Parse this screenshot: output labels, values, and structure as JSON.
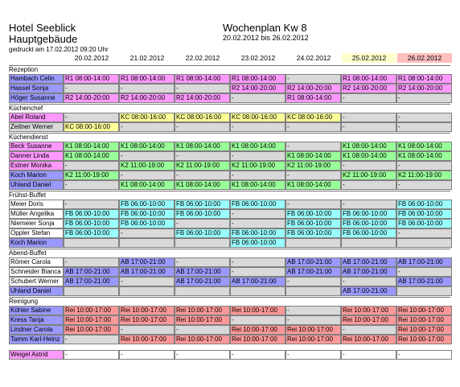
{
  "header": {
    "hotel": "Hotel Seeblick",
    "building": "Hauptgebäude",
    "printed": "gedruckt am 17.02.2012  09:20 Uhr",
    "title": "Wochenplan Kw 8",
    "range": "20.02.2012 bis 26.02.2012"
  },
  "dates": [
    {
      "label": "20.02.2012",
      "bg": "#ffffff"
    },
    {
      "label": "21.02.2012",
      "bg": "#ffffff"
    },
    {
      "label": "22.02.2012",
      "bg": "#ffffff"
    },
    {
      "label": "23.02.2012",
      "bg": "#ffffff"
    },
    {
      "label": "24.02.2012",
      "bg": "#ffffff"
    },
    {
      "label": "25.02.2012",
      "bg": "#ffffcc"
    },
    {
      "label": "26.02.2012",
      "bg": "#ffc0c0"
    }
  ],
  "colors": {
    "pink": "#ff99ff",
    "gray": "#d9d9d9",
    "yellow": "#ffff99",
    "green": "#99ff99",
    "blue": "#9999ff",
    "cyan": "#99ffff",
    "rose": "#ff9999",
    "white": "#ffffff"
  },
  "sections": [
    {
      "title": "Rezeption",
      "rows": [
        {
          "name": "Hambach Celin",
          "nc": "blue",
          "cells": [
            [
              "R1 08:00-14:00",
              "pink"
            ],
            [
              "R1 08:00-14:00",
              "pink"
            ],
            [
              "R1 08:00-14:00",
              "pink"
            ],
            [
              "R1 08:00-14:00",
              "pink"
            ],
            [
              "-",
              "gray"
            ],
            [
              "R1 08:00-14:00",
              "pink"
            ],
            [
              "R1 08:00-14:00",
              "pink"
            ]
          ]
        },
        {
          "name": "Hassel Sonja",
          "nc": "blue",
          "cells": [
            [
              "-",
              "gray"
            ],
            [
              "-",
              "gray"
            ],
            [
              "-",
              "gray"
            ],
            [
              "R2 14:00-20:00",
              "pink"
            ],
            [
              "R2 14:00-20:00",
              "pink"
            ],
            [
              "R2 14:00-20:00",
              "pink"
            ],
            [
              "R2 14:00-20:00",
              "pink"
            ]
          ]
        },
        {
          "name": "Höger Susanne",
          "nc": "blue",
          "cells": [
            [
              "R2 14:00-20:00",
              "pink"
            ],
            [
              "R2 14:00-20:00",
              "pink"
            ],
            [
              "R2 14:00-20:00",
              "pink"
            ],
            [
              "-",
              "gray"
            ],
            [
              "R1 08:00-14:00",
              "pink"
            ],
            [
              "-",
              "gray"
            ],
            [
              "-",
              "gray"
            ]
          ]
        }
      ]
    },
    {
      "title": "Küchenchef",
      "rows": [
        {
          "name": "Abel Roland",
          "nc": "pink",
          "cells": [
            [
              "-",
              "gray"
            ],
            [
              "KC 08:00-16:00",
              "yellow"
            ],
            [
              "KC 08:00-16:00",
              "yellow"
            ],
            [
              "KC 08:00-16:00",
              "yellow"
            ],
            [
              "KC 08:00-16:00",
              "yellow"
            ],
            [
              "-",
              "gray"
            ],
            [
              "-",
              "gray"
            ]
          ]
        },
        {
          "name": "Zeitner Werner",
          "nc": "gray",
          "cells": [
            [
              "KC 08:00-16:00",
              "yellow"
            ],
            [
              "-",
              "gray"
            ],
            [
              "-",
              "gray"
            ],
            [
              "-",
              "gray"
            ],
            [
              "-",
              "gray"
            ],
            [
              "-",
              "gray"
            ],
            [
              "-",
              "gray"
            ]
          ]
        }
      ]
    },
    {
      "title": "Küchendienst",
      "rows": [
        {
          "name": "Beck Susanne",
          "nc": "pink",
          "cells": [
            [
              "K1 08:00-14:00",
              "green"
            ],
            [
              "K1 08:00-14:00",
              "green"
            ],
            [
              "K1 08:00-14:00",
              "green"
            ],
            [
              "K1 08:00-14:00",
              "green"
            ],
            [
              "-",
              "gray"
            ],
            [
              "K1 08:00-14:00",
              "green"
            ],
            [
              "K1 08:00-14:00",
              "green"
            ]
          ]
        },
        {
          "name": "Danner Linda",
          "nc": "pink",
          "cells": [
            [
              "K1 08:00-14:00",
              "green"
            ],
            [
              "-",
              "gray"
            ],
            [
              "-",
              "gray"
            ],
            [
              "-",
              "gray"
            ],
            [
              "K1 08:00-14:00",
              "green"
            ],
            [
              "K1 08:00-14:00",
              "green"
            ],
            [
              "K1 08:00-14:00",
              "green"
            ]
          ]
        },
        {
          "name": "Estner Monika",
          "nc": "pink",
          "cells": [
            [
              "-",
              "gray"
            ],
            [
              "K2 11:00-19:00",
              "green"
            ],
            [
              "K2 11:00-19:00",
              "green"
            ],
            [
              "K2 11:00-19:00",
              "green"
            ],
            [
              "K2 11:00-19:00",
              "green"
            ],
            [
              "-",
              "gray"
            ],
            [
              "-",
              "gray"
            ]
          ]
        },
        {
          "name": "Koch Marion",
          "nc": "blue",
          "cells": [
            [
              "K2 11:00-19:00",
              "green"
            ],
            [
              "-",
              "gray"
            ],
            [
              "-",
              "gray"
            ],
            [
              "-",
              "gray"
            ],
            [
              "-",
              "gray"
            ],
            [
              "K2 11:00-19:00",
              "green"
            ],
            [
              "K2 11:00-19:00",
              "green"
            ]
          ]
        },
        {
          "name": "Uhland Daniel",
          "nc": "blue",
          "cells": [
            [
              "-",
              "gray"
            ],
            [
              "K1 08:00-14:00",
              "green"
            ],
            [
              "K1 08:00-14:00",
              "green"
            ],
            [
              "K1 08:00-14:00",
              "green"
            ],
            [
              "K1 08:00-14:00",
              "green"
            ],
            [
              "-",
              "gray"
            ],
            [
              "-",
              "gray"
            ]
          ]
        }
      ]
    },
    {
      "title": "Frühst-Buffet",
      "rows": [
        {
          "name": "Meier Doris",
          "nc": "white",
          "cells": [
            [
              "-",
              "gray"
            ],
            [
              "FB 06:00-10:00",
              "cyan"
            ],
            [
              "FB 06:00-10:00",
              "cyan"
            ],
            [
              "FB 06:00-10:00",
              "cyan"
            ],
            [
              "-",
              "gray"
            ],
            [
              "-",
              "gray"
            ],
            [
              "FB 06:00-10:00",
              "cyan"
            ]
          ]
        },
        {
          "name": "Müller Angelika",
          "nc": "white",
          "cells": [
            [
              "FB 06:00-10:00",
              "cyan"
            ],
            [
              "FB 06:00-10:00",
              "cyan"
            ],
            [
              "FB 06:00-10:00",
              "cyan"
            ],
            [
              "-",
              "gray"
            ],
            [
              "FB 06:00-10:00",
              "cyan"
            ],
            [
              "FB 06:00-10:00",
              "cyan"
            ],
            [
              "FB 06:00-10:00",
              "cyan"
            ]
          ]
        },
        {
          "name": "Niemeier Sonja",
          "nc": "white",
          "cells": [
            [
              "FB 06:00-10:00",
              "cyan"
            ],
            [
              "FB 06:00-10:00",
              "cyan"
            ],
            [
              "-",
              "gray"
            ],
            [
              "-",
              "gray"
            ],
            [
              "FB 06:00-10:00",
              "cyan"
            ],
            [
              "FB 06:00-10:00",
              "cyan"
            ],
            [
              "FB 06:00-10:00",
              "cyan"
            ]
          ]
        },
        {
          "name": "Oppler Stefan",
          "nc": "white",
          "cells": [
            [
              "FB 06:00-10:00",
              "cyan"
            ],
            [
              "-",
              "gray"
            ],
            [
              "FB 06:00-10:00",
              "cyan"
            ],
            [
              "FB 06:00-10:00",
              "cyan"
            ],
            [
              "FB 06:00-10:00",
              "cyan"
            ],
            [
              "FB 06:00-10:00",
              "cyan"
            ],
            [
              "-",
              "gray"
            ]
          ]
        },
        {
          "name": "Koch Marion",
          "nc": "blue",
          "cells": [
            [
              "",
              "gray"
            ],
            [
              "",
              "gray"
            ],
            [
              "",
              "gray"
            ],
            [
              "FB 06:00-10:00",
              "cyan"
            ],
            [
              "",
              "gray"
            ],
            [
              "",
              "gray"
            ],
            [
              "",
              "gray"
            ]
          ]
        }
      ]
    },
    {
      "title": "Abend-Buffet",
      "rows": [
        {
          "name": "Römer Carola",
          "nc": "white",
          "cells": [
            [
              "-",
              "gray"
            ],
            [
              "AB 17:00-21:00",
              "blue"
            ],
            [
              "-",
              "gray"
            ],
            [
              "-",
              "gray"
            ],
            [
              "AB 17:00-21:00",
              "blue"
            ],
            [
              "AB 17:00-21:00",
              "blue"
            ],
            [
              "AB 17:00-21:00",
              "blue"
            ]
          ]
        },
        {
          "name": "Schneider Bianca",
          "nc": "white",
          "cells": [
            [
              "AB 17:00-21:00",
              "blue"
            ],
            [
              "AB 17:00-21:00",
              "blue"
            ],
            [
              "AB 17:00-21:00",
              "blue"
            ],
            [
              "-",
              "gray"
            ],
            [
              "AB 17:00-21:00",
              "blue"
            ],
            [
              "AB 17:00-21:00",
              "blue"
            ],
            [
              "-",
              "gray"
            ]
          ]
        },
        {
          "name": "Schubert Werner",
          "nc": "white",
          "cells": [
            [
              "AB 17:00-21:00",
              "blue"
            ],
            [
              "-",
              "gray"
            ],
            [
              "AB 17:00-21:00",
              "blue"
            ],
            [
              "AB 17:00-21:00",
              "blue"
            ],
            [
              "-",
              "gray"
            ],
            [
              "-",
              "gray"
            ],
            [
              "AB 17:00-21:00",
              "blue"
            ]
          ]
        },
        {
          "name": "Uhland Daniel",
          "nc": "blue",
          "cells": [
            [
              "",
              "gray"
            ],
            [
              "",
              "gray"
            ],
            [
              "",
              "gray"
            ],
            [
              "",
              "gray"
            ],
            [
              "",
              "gray"
            ],
            [
              "AB 17:00-21:00",
              "blue"
            ],
            [
              "",
              "gray"
            ]
          ]
        }
      ]
    },
    {
      "title": "Reinigung",
      "rows": [
        {
          "name": "Köhler Sabine",
          "nc": "blue",
          "cells": [
            [
              "Rei 10:00-17:00",
              "rose"
            ],
            [
              "Rei 10:00-17:00",
              "rose"
            ],
            [
              "Rei 10:00-17:00",
              "rose"
            ],
            [
              "Rei 10:00-17:00",
              "rose"
            ],
            [
              "-",
              "gray"
            ],
            [
              "Rei 10:00-17:00",
              "rose"
            ],
            [
              "Rei 10:00-17:00",
              "rose"
            ]
          ]
        },
        {
          "name": "Kress Tanja",
          "nc": "blue",
          "cells": [
            [
              "Rei 10:00-17:00",
              "rose"
            ],
            [
              "Rei 10:00-17:00",
              "rose"
            ],
            [
              "Rei 10:00-17:00",
              "rose"
            ],
            [
              "-",
              "gray"
            ],
            [
              "-",
              "gray"
            ],
            [
              "Rei 10:00-17:00",
              "rose"
            ],
            [
              "Rei 10:00-17:00",
              "rose"
            ]
          ]
        },
        {
          "name": "Lindner Carola",
          "nc": "blue",
          "cells": [
            [
              "Rei 10:00-17:00",
              "rose"
            ],
            [
              "-",
              "gray"
            ],
            [
              "-",
              "gray"
            ],
            [
              "Rei 10:00-17:00",
              "rose"
            ],
            [
              "Rei 10:00-17:00",
              "rose"
            ],
            [
              "-",
              "gray"
            ],
            [
              "Rei 10:00-17:00",
              "rose"
            ]
          ]
        },
        {
          "name": "Tamm Karl-Heinz",
          "nc": "blue",
          "cells": [
            [
              "-",
              "gray"
            ],
            [
              "Rei 10:00-17:00",
              "rose"
            ],
            [
              "Rei 10:00-17:00",
              "rose"
            ],
            [
              "Rei 10:00-17:00",
              "rose"
            ],
            [
              "Rei 10:00-17:00",
              "rose"
            ],
            [
              "Rei 10:00-17:00",
              "rose"
            ],
            [
              "Rei 10:00-17:00",
              "rose"
            ]
          ]
        }
      ]
    },
    {
      "title": "",
      "rows": [
        {
          "name": "Weigel Astrid",
          "nc": "pink",
          "cells": [
            [
              "-",
              "white"
            ],
            [
              "-",
              "white"
            ],
            [
              "-",
              "white"
            ],
            [
              "-",
              "white"
            ],
            [
              "-",
              "white"
            ],
            [
              "-",
              "white"
            ],
            [
              "-",
              "white"
            ]
          ]
        }
      ]
    }
  ]
}
